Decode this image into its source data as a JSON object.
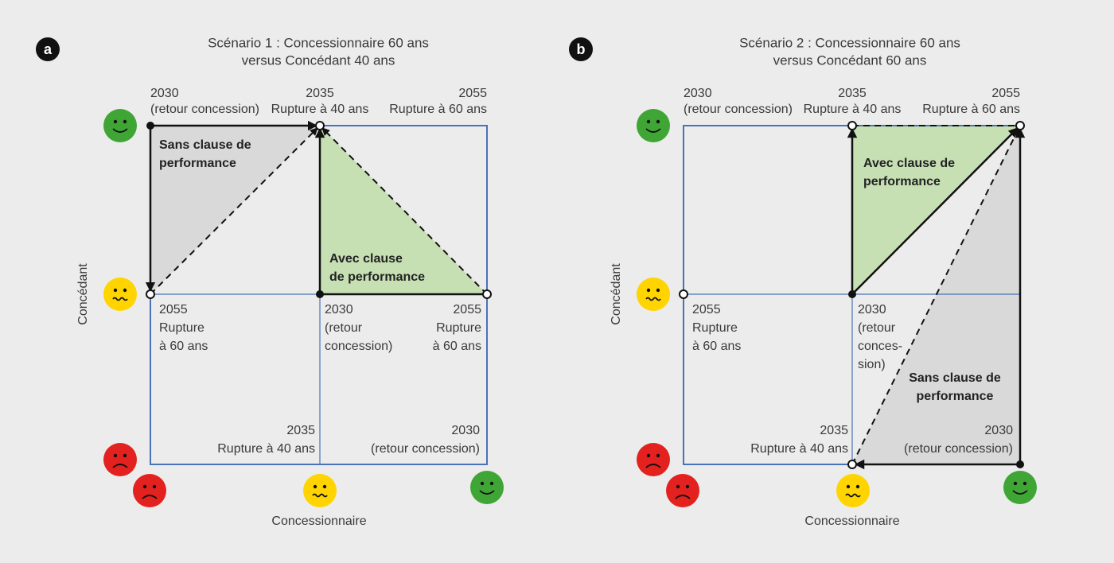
{
  "panels": [
    {
      "badge": "a",
      "title": [
        "Scénario 1 : Concessionnaire 60 ans",
        "versus Concédant 40 ans"
      ],
      "top_labels": [
        [
          "2030",
          "(retour concession)"
        ],
        [
          "2035",
          "Rupture à 40 ans"
        ],
        [
          "2055",
          "Rupture à 60 ans"
        ]
      ],
      "regions": [
        [
          "Sans clause de",
          "performance"
        ],
        [
          "Avec clause",
          "de performance"
        ]
      ],
      "mid_labels": [
        [
          "2055",
          "Rupture",
          "à 60 ans"
        ],
        [
          "2030",
          "(retour",
          "concession)"
        ],
        [
          "2055",
          "Rupture",
          "à 60 ans"
        ]
      ],
      "bottom_labels": [
        [
          "2035",
          "Rupture à 40 ans"
        ],
        [
          "2030",
          "(retour concession)"
        ]
      ],
      "axes": {
        "y": "Concédant",
        "x": "Concessionnaire"
      }
    },
    {
      "badge": "b",
      "title": [
        "Scénario 2 : Concessionnaire 60 ans",
        "versus Concédant 60 ans"
      ],
      "top_labels": [
        [
          "2030",
          "(retour concession)"
        ],
        [
          "2035",
          "Rupture à 40 ans"
        ],
        [
          "2055",
          "Rupture à 60 ans"
        ]
      ],
      "regions": [
        [
          "Avec clause de",
          "performance"
        ],
        [
          "Sans clause de",
          "performance"
        ]
      ],
      "mid_labels": [
        [
          "2055",
          "Rupture",
          "à 60 ans"
        ],
        [
          "2030",
          "(retour",
          "conces-",
          "sion)"
        ]
      ],
      "bottom_labels": [
        [
          "2035",
          "Rupture à 40 ans"
        ],
        [
          "2030",
          "(retour concession)"
        ]
      ],
      "axes": {
        "y": "Concédant",
        "x": "Concessionnaire"
      }
    }
  ]
}
